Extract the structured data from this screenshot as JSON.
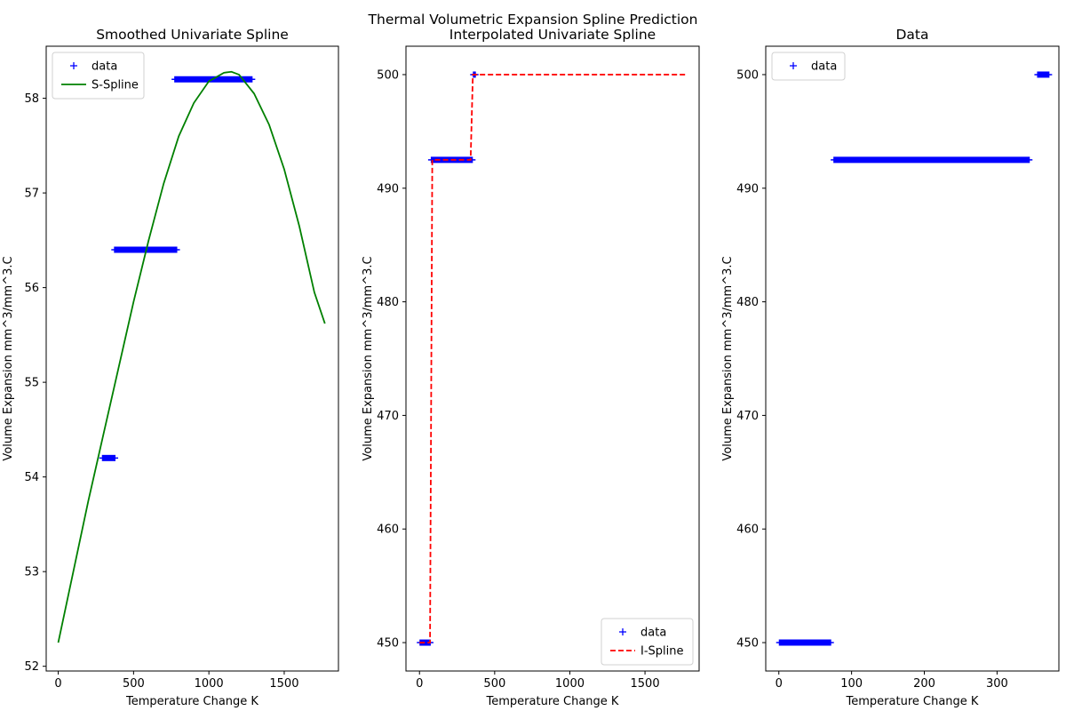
{
  "figure": {
    "suptitle": "Thermal Volumetric Expansion Spline Prediction"
  },
  "chart_data": [
    {
      "type": "line",
      "title": "Smoothed Univariate Spline",
      "xlabel": "Temperature Change K",
      "ylabel": "Volume Expansion mm^3/mm^3.C",
      "xlim": [
        -80,
        1860
      ],
      "ylim": [
        51.95,
        58.55
      ],
      "xticks": [
        0,
        500,
        1000,
        1500
      ],
      "yticks": [
        52,
        53,
        54,
        55,
        56,
        57,
        58
      ],
      "legend": {
        "position": "top-left",
        "entries": [
          "data",
          "S-Spline"
        ]
      },
      "series": [
        {
          "name": "data",
          "style": "marker-plus",
          "color": "#0000ff",
          "segments": [
            {
              "x_start": 290,
              "x_end": 380,
              "y": 54.2
            },
            {
              "x_start": 370,
              "x_end": 790,
              "y": 56.4
            },
            {
              "x_start": 770,
              "x_end": 1290,
              "y": 58.2
            }
          ]
        },
        {
          "name": "S-Spline",
          "style": "solid",
          "color": "#008000",
          "x": [
            0,
            100,
            200,
            300,
            400,
            500,
            600,
            700,
            800,
            900,
            1000,
            1100,
            1150,
            1200,
            1300,
            1400,
            1500,
            1600,
            1700,
            1770
          ],
          "y": [
            52.25,
            53.0,
            53.75,
            54.45,
            55.15,
            55.85,
            56.5,
            57.1,
            57.6,
            57.95,
            58.18,
            58.27,
            58.28,
            58.25,
            58.05,
            57.72,
            57.25,
            56.65,
            55.95,
            55.62
          ]
        }
      ]
    },
    {
      "type": "line",
      "title": "Interpolated Univariate Spline",
      "xlabel": "Temperature Change K",
      "ylabel": "Volume Expansion mm^3/mm^3.C",
      "xlim": [
        -90,
        1860
      ],
      "ylim": [
        447.5,
        502.5
      ],
      "xticks": [
        0,
        500,
        1000,
        1500
      ],
      "yticks": [
        450,
        460,
        470,
        480,
        490,
        500
      ],
      "legend": {
        "position": "bottom-right",
        "entries": [
          "data",
          "I-Spline"
        ]
      },
      "series": [
        {
          "name": "data",
          "style": "marker-plus",
          "color": "#0000ff",
          "segments": [
            {
              "x_start": 0,
              "x_end": 75,
              "y": 450
            },
            {
              "x_start": 75,
              "x_end": 355,
              "y": 492.5
            },
            {
              "x_start": 355,
              "x_end": 375,
              "y": 500
            }
          ]
        },
        {
          "name": "I-Spline",
          "style": "dashed",
          "color": "#ff0000",
          "x": [
            0,
            70,
            85,
            340,
            355,
            1770
          ],
          "y": [
            450,
            450,
            492.5,
            492.5,
            500,
            500
          ]
        }
      ]
    },
    {
      "type": "scatter",
      "title": "Data",
      "xlabel": "Temperature Change K",
      "ylabel": "Volume Expansion mm^3/mm^3.C",
      "xlim": [
        -18,
        385
      ],
      "ylim": [
        447.5,
        502.5
      ],
      "xticks": [
        0,
        100,
        200,
        300
      ],
      "yticks": [
        450,
        460,
        470,
        480,
        490,
        500
      ],
      "legend": {
        "position": "top-left",
        "entries": [
          "data"
        ]
      },
      "series": [
        {
          "name": "data",
          "style": "marker-plus",
          "color": "#0000ff",
          "segments": [
            {
              "x_start": 0,
              "x_end": 72,
              "y": 450
            },
            {
              "x_start": 75,
              "x_end": 345,
              "y": 492.5
            },
            {
              "x_start": 355,
              "x_end": 372,
              "y": 500
            }
          ]
        }
      ]
    }
  ]
}
